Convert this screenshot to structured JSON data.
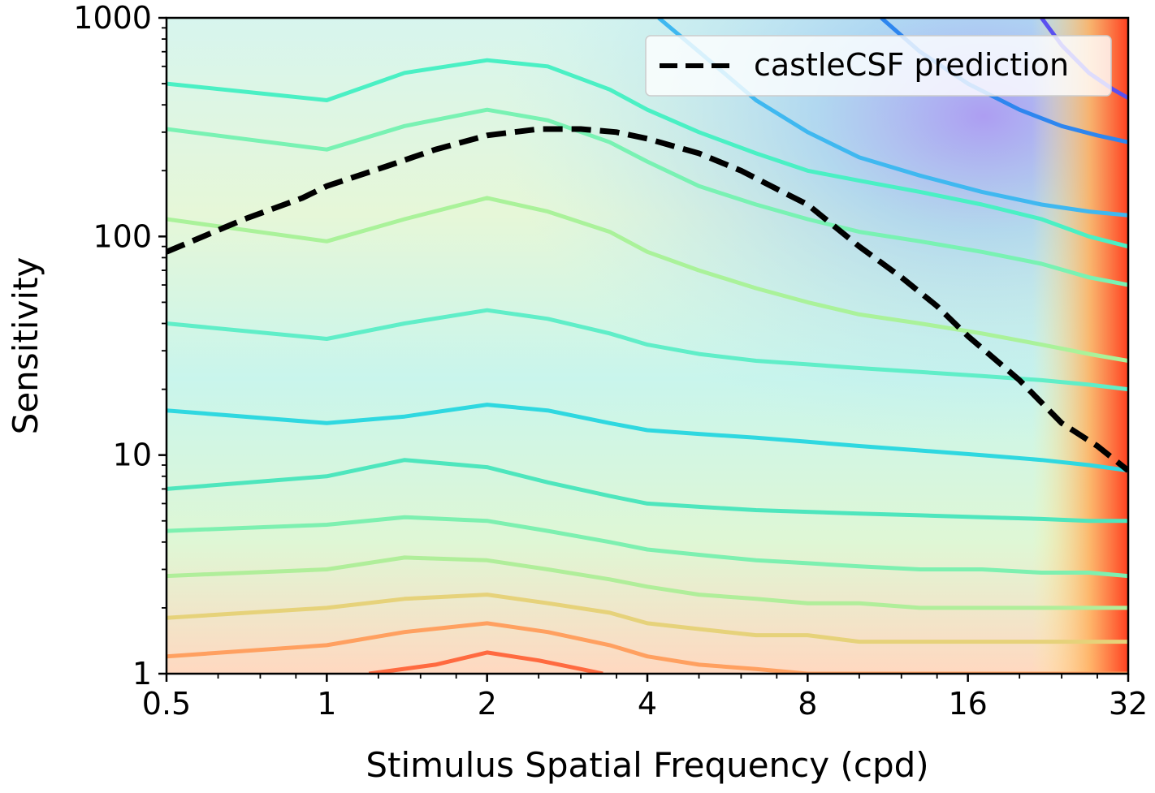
{
  "chart_data": {
    "type": "contour",
    "title": "",
    "xlabel": "Stimulus Spatial Frequency (cpd)",
    "ylabel": "Sensitivity",
    "xscale": "log2",
    "yscale": "log10",
    "xlim": [
      0.5,
      32
    ],
    "ylim": [
      1,
      1000
    ],
    "xticks": [
      0.5,
      1,
      2,
      4,
      8,
      16,
      32
    ],
    "xtick_labels": [
      "0.5",
      "1",
      "2",
      "4",
      "8",
      "16",
      "32"
    ],
    "yticks": [
      1,
      10,
      100,
      1000
    ],
    "ytick_labels": [
      "1",
      "10",
      "100",
      "1000"
    ],
    "grid": false,
    "legend": {
      "placement": "top-right",
      "entries": [
        "castleCSF prediction"
      ]
    },
    "colormap": "rainbow",
    "series": [
      {
        "name": "castleCSF prediction",
        "type": "line",
        "style": "dashed",
        "color": "#000000",
        "x": [
          0.5,
          0.7,
          0.9,
          1.0,
          1.3,
          1.6,
          2.0,
          2.5,
          3.0,
          3.5,
          4.0,
          5.0,
          6.0,
          7.0,
          8.0,
          10.0,
          12.0,
          14.0,
          16.0,
          20.0,
          24.0,
          28.0,
          32.0
        ],
        "y": [
          85,
          120,
          150,
          170,
          210,
          250,
          290,
          310,
          310,
          300,
          280,
          240,
          200,
          165,
          140,
          90,
          65,
          48,
          35,
          22,
          14,
          11,
          8.5
        ]
      }
    ],
    "contour_lines": [
      {
        "color": "#4af0c4",
        "x": [
          0.5,
          1.0,
          1.4,
          2.0,
          2.6,
          3.4,
          4.0,
          5.0,
          6.4,
          8.0,
          10.0,
          13.0,
          17.0,
          22.0,
          27.0,
          32.0
        ],
        "y": [
          500,
          420,
          560,
          640,
          600,
          470,
          380,
          300,
          240,
          200,
          180,
          160,
          140,
          120,
          100,
          90
        ]
      },
      {
        "color": "#79f2b3",
        "x": [
          0.5,
          1.0,
          1.4,
          2.0,
          2.6,
          3.4,
          4.0,
          5.0,
          6.4,
          8.0,
          10.0,
          13.0,
          17.0,
          22.0,
          27.0,
          32.0
        ],
        "y": [
          310,
          250,
          320,
          380,
          340,
          270,
          220,
          170,
          140,
          120,
          105,
          95,
          85,
          75,
          65,
          60
        ]
      },
      {
        "color": "#aaf29a",
        "x": [
          0.5,
          1.0,
          1.4,
          2.0,
          2.6,
          3.4,
          4.0,
          5.0,
          6.4,
          8.0,
          10.0,
          13.0,
          17.0,
          22.0,
          27.0,
          32.0
        ],
        "y": [
          120,
          95,
          120,
          150,
          130,
          105,
          85,
          70,
          58,
          50,
          44,
          40,
          36,
          32,
          29,
          27
        ]
      },
      {
        "color": "#60eec8",
        "x": [
          0.5,
          1.0,
          1.4,
          2.0,
          2.6,
          3.4,
          4.0,
          5.0,
          6.4,
          8.0,
          10.0,
          13.0,
          17.0,
          22.0,
          27.0,
          32.0
        ],
        "y": [
          40,
          34,
          40,
          46,
          42,
          36,
          32,
          29,
          27,
          26,
          25,
          24,
          23,
          22,
          21,
          20
        ]
      },
      {
        "color": "#2fd8e0",
        "x": [
          0.5,
          1.0,
          1.4,
          2.0,
          2.6,
          3.4,
          4.0,
          5.0,
          6.4,
          8.0,
          10.0,
          13.0,
          17.0,
          22.0,
          27.0,
          32.0
        ],
        "y": [
          16,
          14,
          15,
          17,
          16,
          14,
          13,
          12.5,
          12,
          11.5,
          11,
          10.5,
          10,
          9.5,
          9,
          8.5
        ]
      },
      {
        "color": "#4ee6bd",
        "x": [
          0.5,
          1.0,
          1.4,
          2.0,
          2.6,
          3.4,
          4.0,
          5.0,
          6.4,
          8.0,
          10.0,
          13.0,
          17.0,
          22.0,
          27.0,
          32.0
        ],
        "y": [
          7.0,
          8.0,
          9.5,
          8.8,
          7.5,
          6.5,
          6.0,
          5.8,
          5.6,
          5.5,
          5.4,
          5.3,
          5.2,
          5.1,
          5.0,
          5.0
        ]
      },
      {
        "color": "#7df0b0",
        "x": [
          0.5,
          1.0,
          1.4,
          2.0,
          2.6,
          3.4,
          4.0,
          5.0,
          6.4,
          8.0,
          10.0,
          13.0,
          17.0,
          22.0,
          27.0,
          32.0
        ],
        "y": [
          4.5,
          4.8,
          5.2,
          5.0,
          4.5,
          4.0,
          3.7,
          3.5,
          3.3,
          3.2,
          3.1,
          3.0,
          3.0,
          2.9,
          2.9,
          2.8
        ]
      },
      {
        "color": "#b0ee9a",
        "x": [
          0.5,
          1.0,
          1.4,
          2.0,
          2.6,
          3.4,
          4.0,
          5.0,
          6.4,
          8.0,
          10.0,
          13.0,
          17.0,
          22.0,
          27.0,
          32.0
        ],
        "y": [
          2.8,
          3.0,
          3.4,
          3.3,
          3.0,
          2.7,
          2.5,
          2.3,
          2.2,
          2.1,
          2.1,
          2.0,
          2.0,
          2.0,
          2.0,
          2.0
        ]
      },
      {
        "color": "#e6d27a",
        "x": [
          0.5,
          1.0,
          1.4,
          2.0,
          2.6,
          3.4,
          4.0,
          5.0,
          6.4,
          8.0,
          10.0,
          13.0,
          17.0,
          22.0,
          27.0,
          32.0
        ],
        "y": [
          1.8,
          2.0,
          2.2,
          2.3,
          2.1,
          1.9,
          1.7,
          1.6,
          1.5,
          1.5,
          1.4,
          1.4,
          1.4,
          1.4,
          1.4,
          1.4
        ]
      },
      {
        "color": "#ffa060",
        "x": [
          0.5,
          1.0,
          1.4,
          2.0,
          2.6,
          3.4,
          4.0,
          5.0,
          6.4,
          8.0,
          10.0,
          13.0,
          17.0,
          22.0,
          27.0,
          32.0
        ],
        "y": [
          1.2,
          1.35,
          1.55,
          1.7,
          1.55,
          1.35,
          1.2,
          1.1,
          1.05,
          1.0,
          1.0,
          1.0,
          1.0,
          1.0,
          1.0,
          1.0
        ]
      },
      {
        "color": "#ff6a40",
        "x": [
          1.2,
          1.6,
          2.0,
          2.5,
          3.0,
          3.3
        ],
        "y": [
          1.0,
          1.1,
          1.25,
          1.15,
          1.05,
          1.0
        ]
      },
      {
        "color": "#3fb8f0",
        "x": [
          4.2,
          5.0,
          6.4,
          8.0,
          10.0,
          13.0,
          17.0,
          22.0,
          27.0,
          32.0
        ],
        "y": [
          1000,
          700,
          420,
          300,
          230,
          190,
          160,
          140,
          130,
          125
        ]
      },
      {
        "color": "#2e86ef",
        "x": [
          11.0,
          13.0,
          16.0,
          20.0,
          24.0,
          28.0,
          32.0
        ],
        "y": [
          1000,
          700,
          500,
          380,
          320,
          290,
          270
        ]
      },
      {
        "color": "#5a50f0",
        "x": [
          22.0,
          24.0,
          27.0,
          30.0,
          32.0
        ],
        "y": [
          1000,
          750,
          560,
          470,
          430
        ]
      }
    ]
  }
}
